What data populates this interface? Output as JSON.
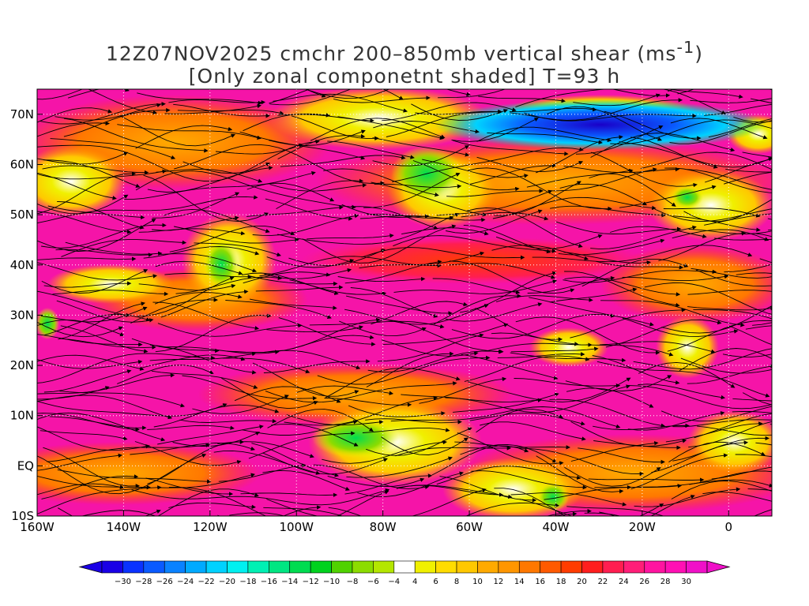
{
  "title": {
    "line1_prefix": "12Z07NOV2025 cmchr 200–850mb vertical shear (ms",
    "line1_sup": "-1",
    "line1_suffix": ")",
    "line2": "[Only zonal componetnt shaded] T=93 h"
  },
  "map": {
    "lon_range": [
      -160,
      10
    ],
    "lat_range": [
      -10,
      75
    ],
    "y_labels": [
      {
        "text": "70N",
        "lat": 70
      },
      {
        "text": "60N",
        "lat": 60
      },
      {
        "text": "50N",
        "lat": 50
      },
      {
        "text": "40N",
        "lat": 40
      },
      {
        "text": "30N",
        "lat": 30
      },
      {
        "text": "20N",
        "lat": 20
      },
      {
        "text": "10N",
        "lat": 10
      },
      {
        "text": "EQ",
        "lat": 0
      },
      {
        "text": "10S",
        "lat": -10
      }
    ],
    "x_labels": [
      {
        "text": "160W",
        "lon": -160
      },
      {
        "text": "140W",
        "lon": -140
      },
      {
        "text": "120W",
        "lon": -120
      },
      {
        "text": "100W",
        "lon": -100
      },
      {
        "text": "80W",
        "lon": -80
      },
      {
        "text": "60W",
        "lon": -60
      },
      {
        "text": "40W",
        "lon": -40
      },
      {
        "text": "20W",
        "lon": -20
      },
      {
        "text": "0",
        "lon": 0
      }
    ]
  },
  "colorbar": {
    "labels": [
      "-30",
      "-28",
      "-26",
      "-24",
      "-22",
      "-20",
      "-18",
      "-16",
      "-14",
      "-12",
      "-10",
      "-8",
      "-6",
      "-4",
      "4",
      "6",
      "8",
      "10",
      "12",
      "14",
      "16",
      "18",
      "20",
      "22",
      "24",
      "26",
      "28",
      "30"
    ],
    "colors": [
      "#1a00e6",
      "#0a32ff",
      "#0a5aff",
      "#0a82ff",
      "#00aaff",
      "#00d2ff",
      "#00f0f0",
      "#00f0b4",
      "#00e682",
      "#00dc50",
      "#00d21e",
      "#50d200",
      "#8cdc00",
      "#b4e600",
      "#ffffff",
      "#f0f000",
      "#ffdc00",
      "#ffc800",
      "#ffaa00",
      "#ff9600",
      "#ff7800",
      "#ff5a00",
      "#ff3c00",
      "#ff1e1e",
      "#ff1e50",
      "#ff1e78",
      "#ff14a0",
      "#ff10b4",
      "#f010c8"
    ],
    "arrow_left_color": "#1a00e6",
    "arrow_right_color": "#f010c8"
  }
}
